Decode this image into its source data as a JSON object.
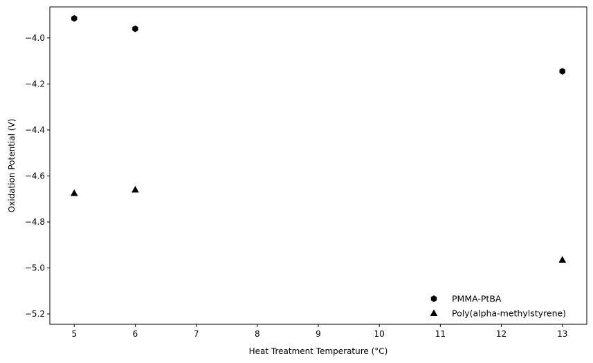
{
  "chart_data": {
    "type": "scatter",
    "title": "",
    "xlabel": "Heat Treatment Temperature (°C)",
    "ylabel": "Oxidation Potential (V)",
    "xlim": [
      4.6,
      13.4
    ],
    "ylim": [
      -5.245,
      -3.865
    ],
    "xticks": [
      5,
      6,
      7,
      8,
      9,
      10,
      11,
      12,
      13
    ],
    "yticks": [
      -5.2,
      -5.0,
      -4.8,
      -4.6,
      -4.4,
      -4.2,
      -4.0
    ],
    "grid": false,
    "legend_position": "lower-right",
    "series": [
      {
        "name": "PMMA-PtBA",
        "marker": "hexagon",
        "color": "#000000",
        "x": [
          5,
          6,
          13
        ],
        "y": [
          -3.915,
          -3.96,
          -4.145
        ]
      },
      {
        "name": "Poly(alpha-methylstyrene)",
        "marker": "triangle",
        "color": "#000000",
        "x": [
          5,
          6,
          13
        ],
        "y": [
          -4.675,
          -4.66,
          -4.965
        ]
      }
    ]
  }
}
